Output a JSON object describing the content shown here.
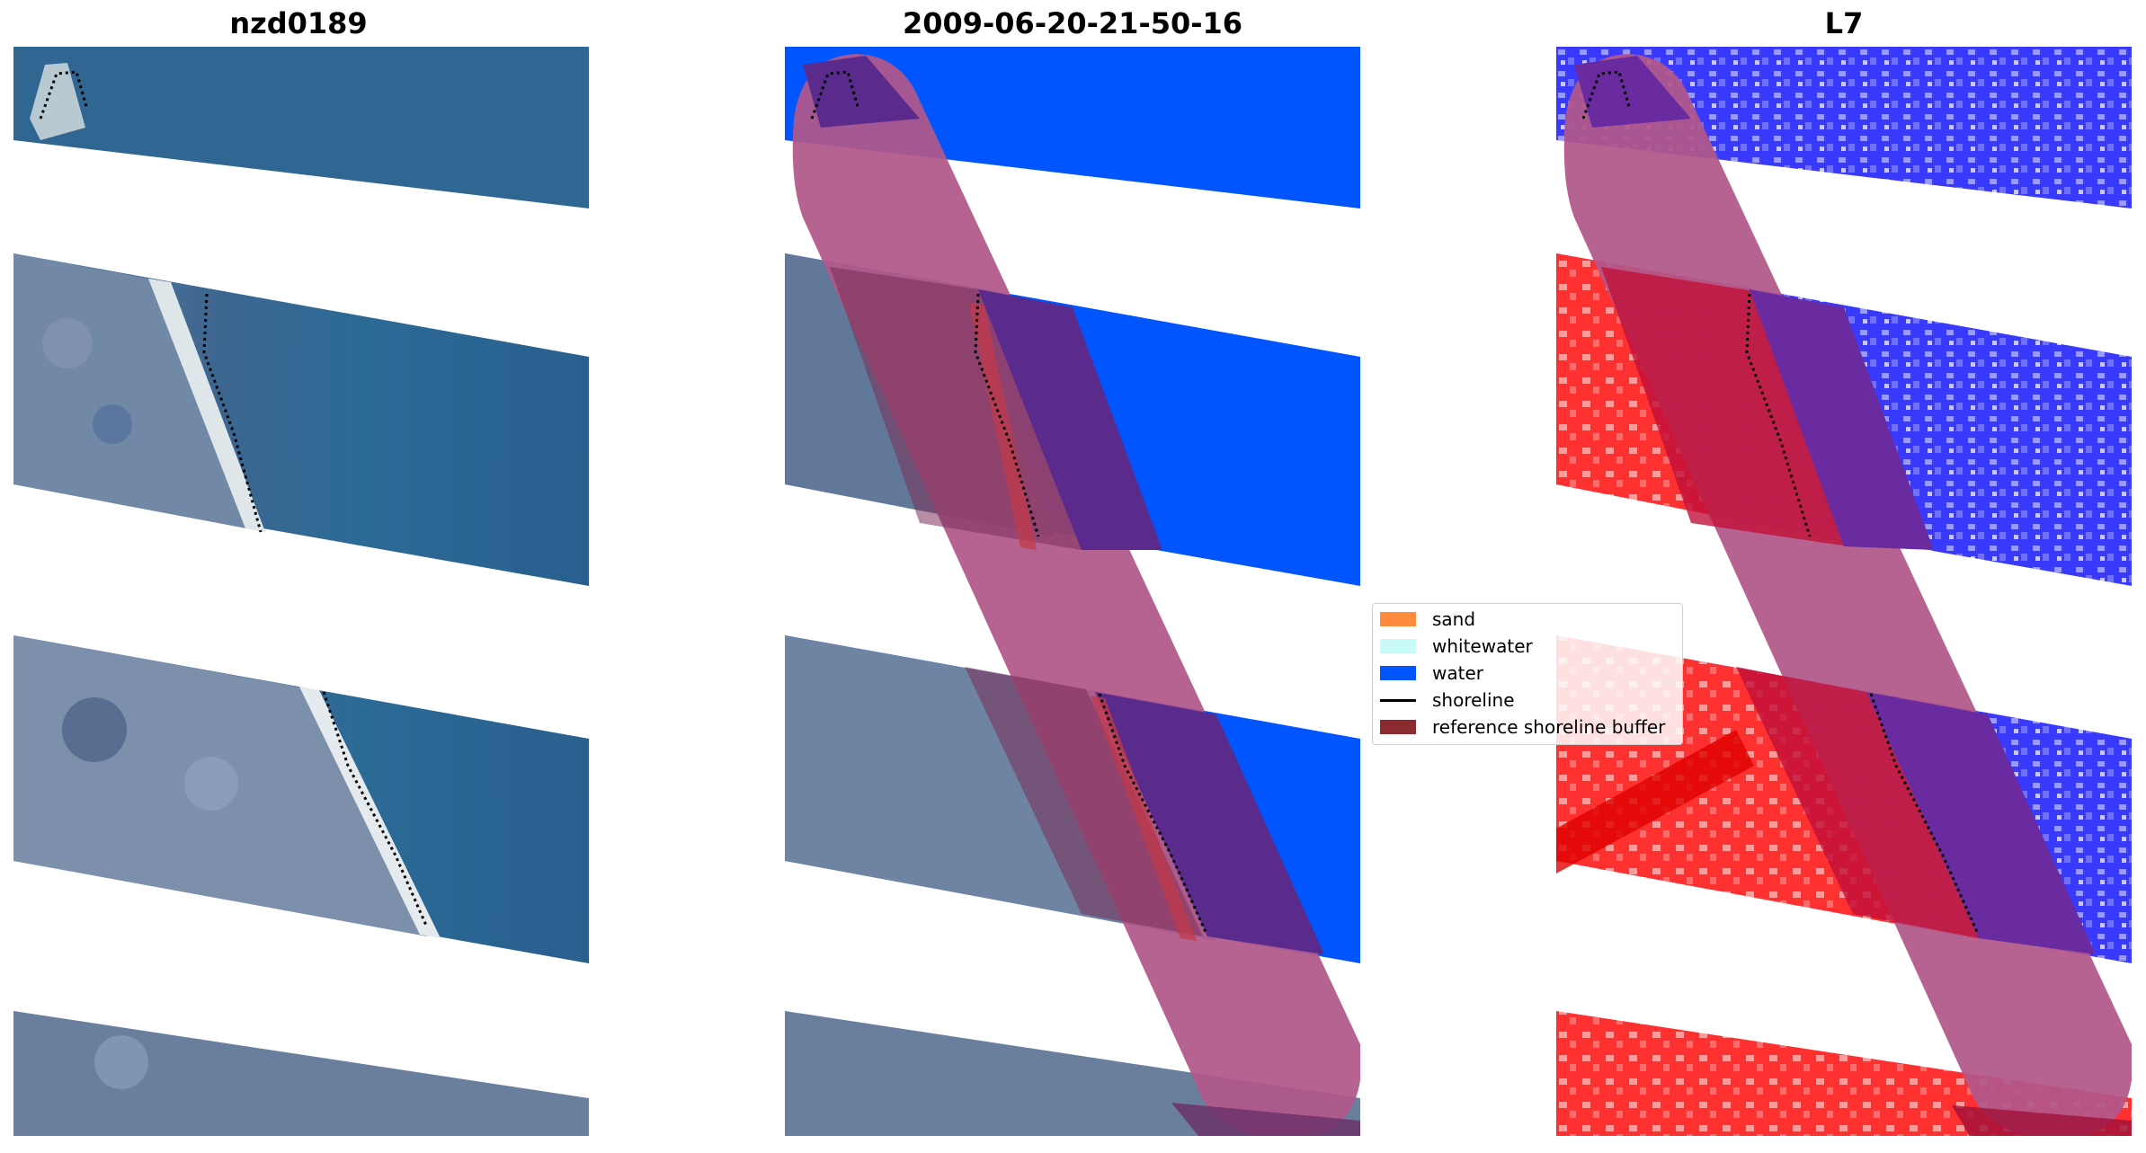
{
  "panels": [
    {
      "title": "nzd0189"
    },
    {
      "title": "2009-06-20-21-50-16"
    },
    {
      "title": "L7"
    }
  ],
  "legend": {
    "items": [
      {
        "label": "sand",
        "color": "#ff8c3c",
        "kind": "patch"
      },
      {
        "label": "whitewater",
        "color": "#c8fafa",
        "kind": "patch"
      },
      {
        "label": "water",
        "color": "#0055ff",
        "kind": "patch"
      },
      {
        "label": "shoreline",
        "color": "#000000",
        "kind": "line"
      },
      {
        "label": "reference shoreline buffer",
        "color": "#8b2a2f",
        "kind": "patch"
      }
    ]
  },
  "colors": {
    "rgb_dark": "#3a5e89",
    "rgb_land": "#6c829e",
    "rgb_sea": "#2e6a97",
    "water_class": "#0055ff",
    "buffer_overlay": "#b2578a",
    "buffer_dark": "#5a2a8c",
    "index_red": "#ff2a2a",
    "index_blue": "#2a2aff"
  }
}
